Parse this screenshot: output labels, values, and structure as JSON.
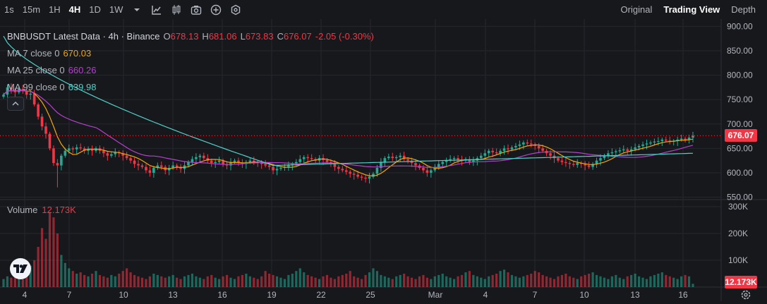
{
  "toolbar": {
    "timeframes": [
      "1s",
      "15m",
      "1H",
      "4H",
      "1D",
      "1W"
    ],
    "active_timeframe": "4H",
    "icons": [
      "chevron-down-icon",
      "indicator-chart-icon",
      "candles-icon",
      "camera-icon",
      "plus-circle-icon",
      "settings-hex-icon"
    ],
    "views": [
      "Original",
      "Trading View",
      "Depth"
    ],
    "active_view": "Trading View"
  },
  "legend": {
    "symbol": "BNBUSDT Latest Data · 4h · Binance",
    "open_label": "O",
    "open": "678.13",
    "high_label": "H",
    "high": "681.06",
    "low_label": "L",
    "low": "673.83",
    "close_label": "C",
    "close": "676.07",
    "change": "-2.05 (-0.30%)",
    "ma7_label": "MA 7 close 0",
    "ma7_value": "670.03",
    "ma25_label": "MA 25 close 0",
    "ma25_value": "660.26",
    "ma99_label": "MA 99 close 0",
    "ma99_value": "639.98"
  },
  "volume_legend": {
    "label": "Volume",
    "value": "12.173K"
  },
  "price_axis": [
    "900.00",
    "850.00",
    "800.00",
    "750.00",
    "700.00",
    "650.00",
    "600.00",
    "550.00"
  ],
  "volume_axis": [
    "300K",
    "200K",
    "100K"
  ],
  "current_price_tag": "676.07",
  "current_volume_tag": "12.173K",
  "time_axis": [
    "4",
    "7",
    "10",
    "13",
    "16",
    "19",
    "22",
    "25",
    "Mar",
    "4",
    "7",
    "10",
    "13",
    "16"
  ],
  "colors": {
    "up": "#22ab94",
    "down": "#f23645",
    "ma7": "#f7a600",
    "ma25": "#b83fd1",
    "ma99": "#4fd0c8",
    "background": "#17181c"
  },
  "chart_data": {
    "type": "candlestick",
    "title": "BNBUSDT Latest Data · 4h · Binance",
    "ylim": [
      545,
      915
    ],
    "price_ticks": [
      900,
      850,
      800,
      750,
      700,
      650,
      600,
      550
    ],
    "volume_ticks": [
      300000,
      200000,
      100000
    ],
    "volume_ylim": [
      0,
      300000
    ],
    "current_price": 676.07,
    "x_categories": [
      "4",
      "7",
      "10",
      "13",
      "16",
      "19",
      "22",
      "25",
      "Mar",
      "4",
      "7",
      "10",
      "13",
      "16"
    ],
    "close_series": [
      760,
      775,
      770,
      765,
      772,
      768,
      760,
      762,
      740,
      715,
      695,
      680,
      650,
      620,
      615,
      635,
      645,
      650,
      648,
      652,
      650,
      645,
      648,
      645,
      650,
      645,
      640,
      635,
      638,
      642,
      640,
      635,
      630,
      625,
      618,
      615,
      612,
      605,
      600,
      610,
      615,
      612,
      605,
      610,
      615,
      612,
      608,
      615,
      622,
      628,
      632,
      635,
      630,
      625,
      620,
      622,
      625,
      618,
      615,
      622,
      625,
      620,
      618,
      622,
      625,
      622,
      620,
      618,
      615,
      612,
      605,
      608,
      610,
      612,
      615,
      618,
      622,
      628,
      632,
      630,
      628,
      625,
      630,
      626,
      622,
      618,
      612,
      608,
      605,
      602,
      598,
      596,
      592,
      590,
      588,
      592,
      598,
      610,
      622,
      630,
      633,
      630,
      632,
      635,
      628,
      625,
      620,
      615,
      610,
      605,
      600,
      605,
      612,
      618,
      622,
      625,
      628,
      630,
      627,
      625,
      628,
      622,
      625,
      630,
      635,
      640,
      645,
      642,
      640,
      645,
      650,
      648,
      652,
      655,
      658,
      662,
      660,
      658,
      655,
      650,
      645,
      640,
      635,
      630,
      625,
      622,
      620,
      618,
      616,
      620,
      618,
      615,
      612,
      618,
      625,
      630,
      635,
      640,
      642,
      644,
      646,
      648,
      645,
      648,
      652,
      655,
      658,
      660,
      662,
      664,
      665,
      668,
      666,
      664,
      665,
      668,
      670,
      668,
      672,
      676
    ],
    "ma7_value": 670.03,
    "ma25_value": 660.26,
    "ma99_value": 639.98,
    "volume_series": [
      30,
      40,
      35,
      45,
      40,
      30,
      60,
      80,
      100,
      150,
      220,
      180,
      280,
      260,
      200,
      120,
      90,
      70,
      60,
      50,
      55,
      45,
      40,
      50,
      60,
      45,
      40,
      35,
      45,
      40,
      50,
      60,
      70,
      55,
      45,
      40,
      35,
      30,
      40,
      50,
      45,
      40,
      35,
      40,
      45,
      35,
      30,
      40,
      45,
      50,
      40,
      35,
      30,
      40,
      45,
      35,
      30,
      40,
      45,
      35,
      30,
      40,
      45,
      50,
      40,
      35,
      30,
      40,
      60,
      50,
      45,
      40,
      35,
      30,
      45,
      50,
      60,
      70,
      55,
      45,
      40,
      35,
      30,
      40,
      45,
      35,
      30,
      40,
      45,
      50,
      60,
      40,
      35,
      30,
      45,
      55,
      70,
      60,
      45,
      40,
      35,
      30,
      40,
      45,
      50,
      40,
      35,
      30,
      40,
      45,
      35,
      30,
      40,
      45,
      50,
      40,
      35,
      30,
      40,
      45,
      55,
      60,
      45,
      40,
      35,
      30,
      40,
      45,
      50,
      60,
      65,
      55,
      45,
      40,
      35,
      40,
      45,
      50,
      60,
      55,
      45,
      40,
      35,
      30,
      40,
      45,
      50,
      40,
      35,
      30,
      40,
      45,
      50,
      55,
      45,
      40,
      35,
      30,
      40,
      45,
      35,
      30,
      40,
      45,
      50,
      40,
      35,
      30,
      40,
      45,
      50,
      55,
      45,
      40,
      35,
      30,
      40,
      45,
      40,
      12.173
    ],
    "volume_unit": "K",
    "current_volume": "12.173K"
  }
}
